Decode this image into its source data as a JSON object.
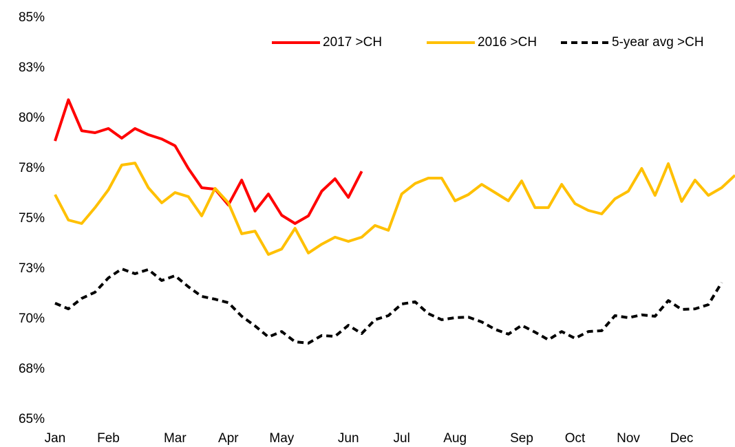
{
  "chart_data": {
    "type": "line",
    "categories": [
      "Jan",
      null,
      null,
      null,
      "Feb",
      null,
      null,
      null,
      null,
      "Mar",
      null,
      null,
      null,
      "Apr",
      null,
      null,
      null,
      "May",
      null,
      null,
      null,
      null,
      "Jun",
      null,
      null,
      null,
      "Jul",
      null,
      null,
      null,
      "Aug",
      null,
      null,
      null,
      null,
      "Sep",
      null,
      null,
      null,
      "Oct",
      null,
      null,
      null,
      "Nov",
      null,
      null,
      null,
      "Dec",
      null,
      null,
      null,
      null
    ],
    "series": [
      {
        "name": "2017 >CH",
        "color": "#ff0000",
        "dash": false,
        "values": [
          78.87,
          80.92,
          79.38,
          79.28,
          79.49,
          79.01,
          79.49,
          79.18,
          78.97,
          78.63,
          77.5,
          76.54,
          76.47,
          75.68,
          76.92,
          75.38,
          76.23,
          75.17,
          74.76,
          75.14,
          76.37,
          76.99,
          76.06,
          77.36,
          null,
          null,
          null,
          null,
          null,
          null,
          null,
          null,
          null,
          null,
          null,
          null,
          null,
          null,
          null,
          null,
          null,
          null,
          null,
          null,
          null,
          null,
          null,
          null,
          null,
          null,
          null,
          null
        ]
      },
      {
        "name": "2016 >CH",
        "color": "#ffc000",
        "dash": false,
        "values": [
          76.2,
          74.93,
          74.76,
          75.55,
          76.44,
          77.67,
          77.77,
          76.54,
          75.79,
          76.3,
          76.1,
          75.14,
          76.51,
          75.79,
          74.25,
          74.38,
          73.22,
          73.49,
          74.52,
          73.29,
          73.73,
          74.08,
          73.87,
          74.08,
          74.66,
          74.42,
          76.23,
          76.75,
          77.02,
          77.02,
          75.89,
          76.2,
          76.71,
          76.3,
          75.89,
          76.88,
          75.55,
          75.55,
          76.71,
          75.75,
          75.41,
          75.24,
          75.99,
          76.37,
          77.5,
          76.16,
          77.74,
          75.86,
          76.92,
          76.16,
          76.54,
          77.16
        ]
      },
      {
        "name": "5-year avg >CH",
        "color": "#000000",
        "dash": true,
        "values": [
          70.79,
          70.51,
          71.03,
          71.34,
          72.05,
          72.5,
          72.26,
          72.47,
          71.92,
          72.16,
          71.61,
          71.13,
          70.99,
          70.82,
          70.14,
          69.66,
          69.11,
          69.38,
          68.87,
          68.8,
          69.18,
          69.14,
          69.69,
          69.28,
          69.97,
          70.17,
          70.75,
          70.86,
          70.27,
          69.97,
          70.07,
          70.1,
          69.86,
          69.49,
          69.25,
          69.69,
          69.35,
          68.97,
          69.38,
          69.04,
          69.38,
          69.42,
          70.17,
          70.07,
          70.21,
          70.14,
          70.92,
          70.48,
          70.51,
          70.72,
          71.82,
          null
        ]
      }
    ],
    "ylim": [
      65,
      85
    ],
    "yticks": [
      {
        "value": 65,
        "label": "65%"
      },
      {
        "value": 67.5,
        "label": "68%"
      },
      {
        "value": 70,
        "label": "70%"
      },
      {
        "value": 72.5,
        "label": "73%"
      },
      {
        "value": 75,
        "label": "75%"
      },
      {
        "value": 77.5,
        "label": "78%"
      },
      {
        "value": 80,
        "label": "80%"
      },
      {
        "value": 82.5,
        "label": "83%"
      },
      {
        "value": 85,
        "label": "85%"
      }
    ],
    "grid": false,
    "legend": "top-right"
  }
}
